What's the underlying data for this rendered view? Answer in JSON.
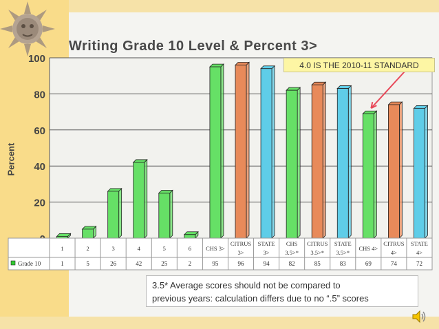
{
  "callout": "4.0 IS THE 2010-11 STANDARD",
  "note_lines": [
    "3.5* Average scores should not be compared to",
    "previous years: calculation differs due to no “.5” scores"
  ],
  "colors": {
    "green": "#66e066",
    "orange": "#e88a5a",
    "blue": "#5fcde8",
    "arrow": "#e84a5a",
    "legend_marker": "#33cc33"
  },
  "icons": {
    "sun": "sun-face-icon",
    "speaker": "speaker-icon"
  },
  "chart_data": {
    "type": "bar",
    "title": "Writing Grade 10 Level & Percent 3>",
    "xlabel": "",
    "ylabel": "Percent",
    "ylim": [
      0,
      100
    ],
    "yticks": [
      0,
      20,
      40,
      60,
      80,
      100
    ],
    "grid": true,
    "legend": "bottom-left data table",
    "categories": [
      [
        "1"
      ],
      [
        "2"
      ],
      [
        "3"
      ],
      [
        "4"
      ],
      [
        "5"
      ],
      [
        "6"
      ],
      [
        "CHS 3>"
      ],
      [
        "CITRUS",
        "3>"
      ],
      [
        "STATE",
        "3>"
      ],
      [
        "CHS",
        "3.5>*"
      ],
      [
        "CITRUS",
        "3.5>*"
      ],
      [
        "STATE",
        "3.5>*"
      ],
      [
        "CHS 4>"
      ],
      [
        "CITRUS",
        "4>"
      ],
      [
        "STATE",
        "4>"
      ]
    ],
    "bar_colors": [
      "green",
      "green",
      "green",
      "green",
      "green",
      "green",
      "green",
      "orange",
      "blue",
      "green",
      "orange",
      "blue",
      "green",
      "orange",
      "blue"
    ],
    "series": [
      {
        "name": "Grade 10",
        "values": [
          1,
          5,
          26,
          42,
          25,
          2,
          95,
          96,
          94,
          82,
          85,
          83,
          69,
          74,
          72
        ]
      }
    ]
  }
}
